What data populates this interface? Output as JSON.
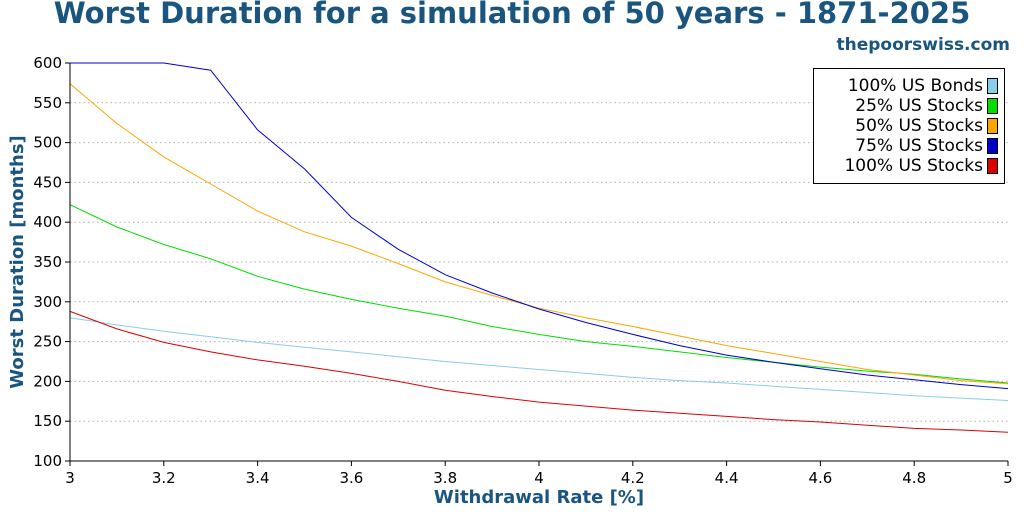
{
  "header": {
    "title": "Worst Duration for a simulation of 50 years - 1871-2025",
    "source": "thepoorswiss.com"
  },
  "chart_data": {
    "type": "line",
    "xlabel": "Withdrawal Rate [%]",
    "ylabel": "Worst Duration [months]",
    "xlim": [
      3,
      5
    ],
    "ylim": [
      100,
      600
    ],
    "xticks": [
      "3",
      "3.2",
      "3.4",
      "3.6",
      "3.8",
      "4",
      "4.2",
      "4.4",
      "4.6",
      "4.8",
      "5"
    ],
    "yticks": [
      "100",
      "150",
      "200",
      "250",
      "300",
      "350",
      "400",
      "450",
      "500",
      "550",
      "600"
    ],
    "grid": "horizontal dotted",
    "legend_position": "top-right",
    "x": [
      3.0,
      3.1,
      3.2,
      3.3,
      3.4,
      3.5,
      3.6,
      3.7,
      3.8,
      3.9,
      4.0,
      4.1,
      4.2,
      4.3,
      4.4,
      4.5,
      4.6,
      4.7,
      4.8,
      4.9,
      5.0
    ],
    "series": [
      {
        "name": "100% US Bonds",
        "color": "#87ceeb",
        "values": [
          280,
          271,
          263,
          256,
          249,
          243,
          237,
          231,
          225,
          220,
          215,
          210,
          205,
          201,
          198,
          194,
          190,
          186,
          182,
          179,
          176
        ]
      },
      {
        "name": "25% US Stocks",
        "color": "#00dd00",
        "values": [
          422,
          394,
          372,
          354,
          332,
          316,
          303,
          292,
          282,
          269,
          259,
          250,
          244,
          237,
          230,
          224,
          218,
          213,
          209,
          203,
          198
        ]
      },
      {
        "name": "50% US Stocks",
        "color": "#ffa500",
        "values": [
          574,
          524,
          482,
          448,
          414,
          388,
          370,
          348,
          325,
          308,
          292,
          280,
          269,
          257,
          245,
          235,
          225,
          215,
          208,
          201,
          197
        ]
      },
      {
        "name": "75% US Stocks",
        "color": "#0000cc",
        "values": [
          600,
          600,
          600,
          591,
          516,
          467,
          406,
          366,
          334,
          311,
          291,
          274,
          259,
          245,
          233,
          224,
          216,
          208,
          202,
          196,
          191
        ]
      },
      {
        "name": "100% US Stocks",
        "color": "#dd0000",
        "values": [
          288,
          266,
          249,
          237,
          227,
          219,
          210,
          200,
          189,
          181,
          174,
          169,
          164,
          160,
          156,
          152,
          149,
          145,
          141,
          139,
          136
        ]
      }
    ]
  },
  "legend": {
    "items": [
      {
        "label": "100% US Bonds",
        "color": "#87ceeb"
      },
      {
        "label": "25% US Stocks",
        "color": "#00dd00"
      },
      {
        "label": "50% US Stocks",
        "color": "#ffa500"
      },
      {
        "label": "75% US Stocks",
        "color": "#0000cc"
      },
      {
        "label": "100% US Stocks",
        "color": "#dd0000"
      }
    ]
  }
}
